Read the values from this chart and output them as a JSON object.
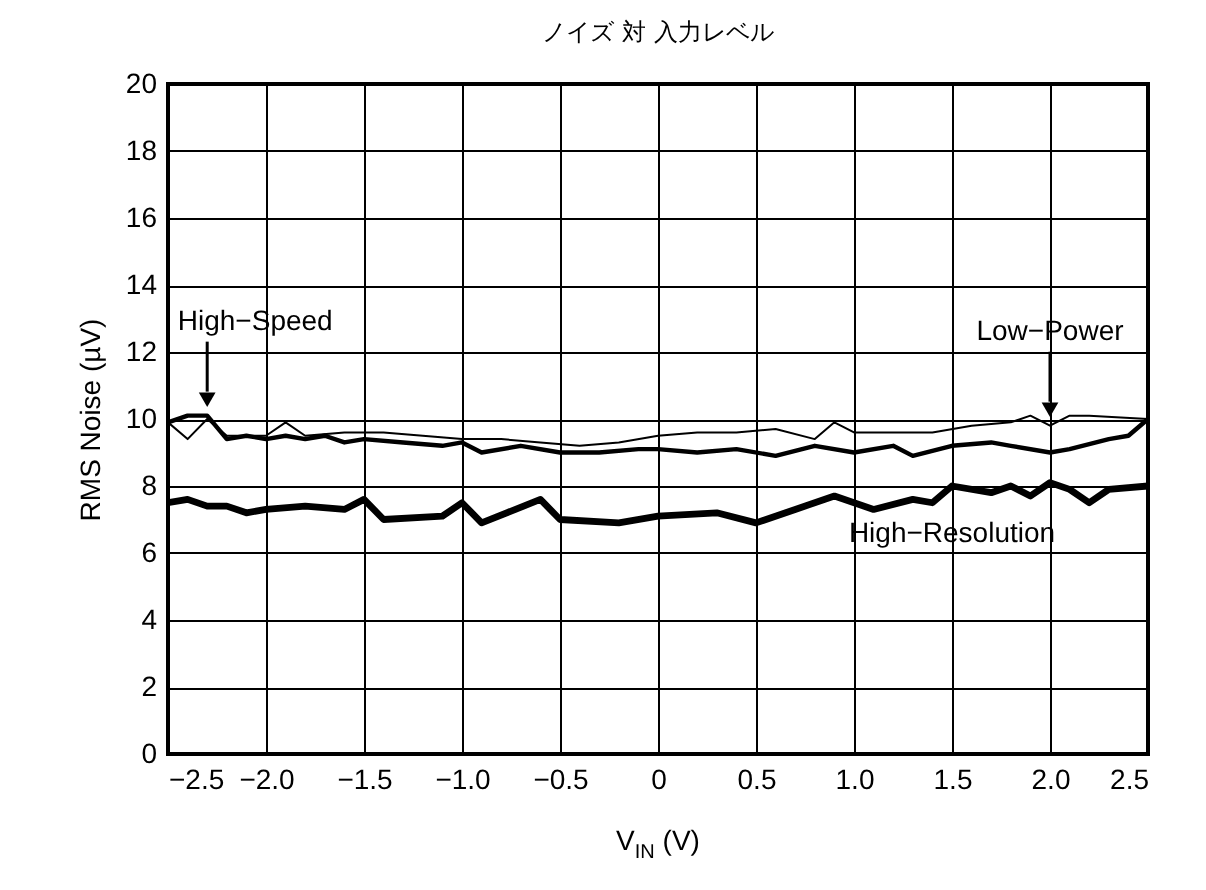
{
  "chart_data": {
    "type": "line",
    "title": "ノイズ 対 入力レベル",
    "xlabel": "V$_{IN}$ (V)",
    "ylabel": "RMS Noise (µV)",
    "xlim": [
      -2.5,
      2.5
    ],
    "xticks": [
      {
        "value": -2.5,
        "label": "−2.5"
      },
      {
        "value": -2.0,
        "label": "−2.0"
      },
      {
        "value": -1.5,
        "label": "−1.5"
      },
      {
        "value": -1.0,
        "label": "−1.0"
      },
      {
        "value": -0.5,
        "label": "−0.5"
      },
      0,
      0.5,
      {
        "value": 1.0,
        "label": "1.0"
      },
      1.5,
      {
        "value": 2.0,
        "label": "2.0"
      },
      2.5
    ],
    "ylim": [
      0,
      20
    ],
    "yticks": [
      0,
      2,
      4,
      6,
      8,
      10,
      12,
      14,
      16,
      18,
      20
    ],
    "grid": true,
    "line_style": "solid",
    "series": [
      {
        "name": "High−Speed",
        "color": "#000000",
        "x": [
          -2.5,
          -2.4,
          -2.3,
          -2.2,
          -2.1,
          -2.0,
          -1.9,
          -1.8,
          -1.7,
          -1.6,
          -1.5,
          -1.3,
          -1.1,
          -1.0,
          -0.9,
          -0.7,
          -0.5,
          -0.3,
          -0.1,
          0.0,
          0.2,
          0.4,
          0.6,
          0.8,
          1.0,
          1.2,
          1.3,
          1.5,
          1.7,
          1.8,
          2.0,
          2.1,
          2.3,
          2.4,
          2.5
        ],
        "values": [
          9.9,
          10.1,
          10.1,
          9.4,
          9.5,
          9.4,
          9.5,
          9.4,
          9.5,
          9.3,
          9.4,
          9.3,
          9.2,
          9.3,
          9.0,
          9.2,
          9.0,
          9.0,
          9.1,
          9.1,
          9.0,
          9.1,
          8.9,
          9.2,
          9.0,
          9.2,
          8.9,
          9.2,
          9.3,
          9.2,
          9.0,
          9.1,
          9.4,
          9.5,
          10.0
        ]
      },
      {
        "name": "Low−Power",
        "color": "#000000",
        "x": [
          -2.5,
          -2.4,
          -2.3,
          -2.2,
          -2.1,
          -2.0,
          -1.9,
          -1.8,
          -1.6,
          -1.4,
          -1.2,
          -1.0,
          -0.8,
          -0.6,
          -0.4,
          -0.2,
          0.0,
          0.2,
          0.4,
          0.6,
          0.8,
          0.9,
          1.0,
          1.2,
          1.4,
          1.6,
          1.8,
          1.9,
          2.0,
          2.1,
          2.2,
          2.5
        ],
        "values": [
          9.9,
          9.4,
          10.0,
          9.5,
          9.5,
          9.5,
          9.9,
          9.5,
          9.6,
          9.6,
          9.5,
          9.4,
          9.4,
          9.3,
          9.2,
          9.3,
          9.5,
          9.6,
          9.6,
          9.7,
          9.4,
          9.9,
          9.6,
          9.6,
          9.6,
          9.8,
          9.9,
          10.1,
          9.8,
          10.1,
          10.1,
          10.0
        ]
      },
      {
        "name": "High−Resolution",
        "color": "#000000",
        "x": [
          -2.5,
          -2.4,
          -2.3,
          -2.2,
          -2.1,
          -2.0,
          -1.8,
          -1.6,
          -1.5,
          -1.4,
          -1.1,
          -1.0,
          -0.9,
          -0.6,
          -0.5,
          -0.2,
          0.0,
          0.3,
          0.5,
          0.7,
          0.9,
          1.1,
          1.3,
          1.4,
          1.5,
          1.7,
          1.8,
          1.9,
          2.0,
          2.1,
          2.2,
          2.3,
          2.5
        ],
        "values": [
          7.5,
          7.6,
          7.4,
          7.4,
          7.2,
          7.3,
          7.4,
          7.3,
          7.6,
          7.0,
          7.1,
          7.5,
          6.9,
          7.6,
          7.0,
          6.9,
          7.1,
          7.2,
          6.9,
          7.3,
          7.7,
          7.3,
          7.6,
          7.5,
          8.0,
          7.8,
          8.0,
          7.7,
          8.1,
          7.9,
          7.5,
          7.9,
          8.0
        ]
      }
    ]
  }
}
